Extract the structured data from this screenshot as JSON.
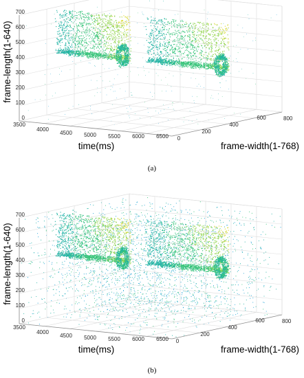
{
  "chart_data": [
    {
      "type": "scatter",
      "subtype": "3d-point-cloud",
      "caption": "(a)",
      "xlabel": "time(ms)",
      "ylabel": "frame-width(1-768)",
      "zlabel": "frame-length(1-640)",
      "x_ticks": [
        "3500",
        "4000",
        "4500",
        "5000",
        "5500",
        "6000",
        "6500"
      ],
      "y_ticks": [
        "0",
        "200",
        "400",
        "600",
        "800"
      ],
      "z_ticks": [
        "0",
        "100",
        "200",
        "300",
        "400",
        "500",
        "600",
        "700"
      ],
      "xlim": [
        3500,
        6500
      ],
      "ylim": [
        0,
        800
      ],
      "zlim": [
        0,
        700
      ],
      "grid": true,
      "noise_level": "sparse",
      "colormap": [
        "#1fa3d6",
        "#22b3a4",
        "#38c47a",
        "#8fd34a",
        "#d7d932"
      ],
      "series": [
        {
          "x_range": [
            3500,
            4900
          ],
          "y_range": [
            260,
            300
          ],
          "z_range": [
            360,
            680
          ]
        },
        {
          "x_range": [
            4900,
            6450
          ],
          "y_range": [
            400,
            440
          ],
          "z_range": [
            320,
            650
          ]
        }
      ]
    },
    {
      "type": "scatter",
      "subtype": "3d-point-cloud",
      "caption": "(b)",
      "xlabel": "time(ms)",
      "ylabel": "frame-width(1-768)",
      "zlabel": "frame-length(1-640)",
      "x_ticks": [
        "3500",
        "4000",
        "4500",
        "5000",
        "5500",
        "6000",
        "6500"
      ],
      "y_ticks": [
        "0",
        "200",
        "400",
        "600",
        "800"
      ],
      "z_ticks": [
        "0",
        "100",
        "200",
        "300",
        "400",
        "500",
        "600",
        "700"
      ],
      "xlim": [
        3500,
        6500
      ],
      "ylim": [
        0,
        800
      ],
      "zlim": [
        0,
        700
      ],
      "grid": true,
      "noise_level": "dense",
      "colormap": [
        "#1fa3d6",
        "#22b3a4",
        "#38c47a",
        "#8fd34a",
        "#d7d932"
      ],
      "series": [
        {
          "x_range": [
            3500,
            4900
          ],
          "y_range": [
            260,
            300
          ],
          "z_range": [
            360,
            680
          ]
        },
        {
          "x_range": [
            4900,
            6450
          ],
          "y_range": [
            400,
            440
          ],
          "z_range": [
            320,
            650
          ]
        }
      ]
    }
  ]
}
